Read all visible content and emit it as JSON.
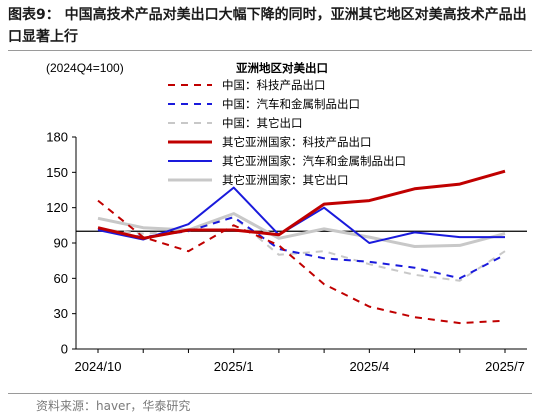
{
  "figure": {
    "title": "图表9：  中国高技术产品对美出口大幅下降的同时，亚洲其它地区对美高技术产品出口显著上行",
    "source": "资料来源：haver，华泰研究"
  },
  "chart_data": {
    "type": "line",
    "title": "",
    "xlabel": "",
    "ylabel": "",
    "index_note": "(2024Q4=100)",
    "legend_title": "亚洲地区对美出口",
    "legend_position": "top-center",
    "ylim": [
      0,
      180
    ],
    "yticks": [
      0,
      30,
      60,
      90,
      120,
      150,
      180
    ],
    "x_tick_labels": [
      "2024/10",
      "2025/1",
      "2025/4",
      "2025/7"
    ],
    "x": [
      "2024/10",
      "2024/11",
      "2024/12",
      "2025/1",
      "2025/2",
      "2025/3",
      "2025/4",
      "2025/5",
      "2025/6",
      "2025/7"
    ],
    "reference_line": 100,
    "series": [
      {
        "name": "中国：科技产品出口",
        "color": "#c00000",
        "style": "dashed",
        "width": 2,
        "values": [
          126,
          95,
          83,
          105,
          88,
          55,
          36,
          27,
          22,
          24
        ]
      },
      {
        "name": "中国：汽车和金属制品出口",
        "color": "#1a1adc",
        "style": "dashed",
        "width": 2,
        "values": [
          101,
          95,
          100,
          112,
          85,
          77,
          74,
          69,
          60,
          80
        ]
      },
      {
        "name": "中国：其它出口",
        "color": "#c8c8c8",
        "style": "dashed",
        "width": 2,
        "values": [
          102,
          98,
          100,
          112,
          80,
          83,
          72,
          63,
          58,
          83
        ]
      },
      {
        "name": "其它亚洲国家：科技产品出口",
        "color": "#c00000",
        "style": "solid",
        "width": 3,
        "values": [
          103,
          94,
          101,
          101,
          97,
          123,
          126,
          136,
          140,
          151
        ]
      },
      {
        "name": "其它亚洲国家：汽车和金属制品出口",
        "color": "#1a1adc",
        "style": "solid",
        "width": 2,
        "values": [
          101,
          93,
          106,
          137,
          97,
          120,
          90,
          99,
          95,
          95
        ]
      },
      {
        "name": "其它亚洲国家：其它出口",
        "color": "#c8c8c8",
        "style": "solid",
        "width": 3,
        "values": [
          111,
          103,
          101,
          115,
          94,
          102,
          95,
          87,
          88,
          98
        ]
      }
    ]
  }
}
